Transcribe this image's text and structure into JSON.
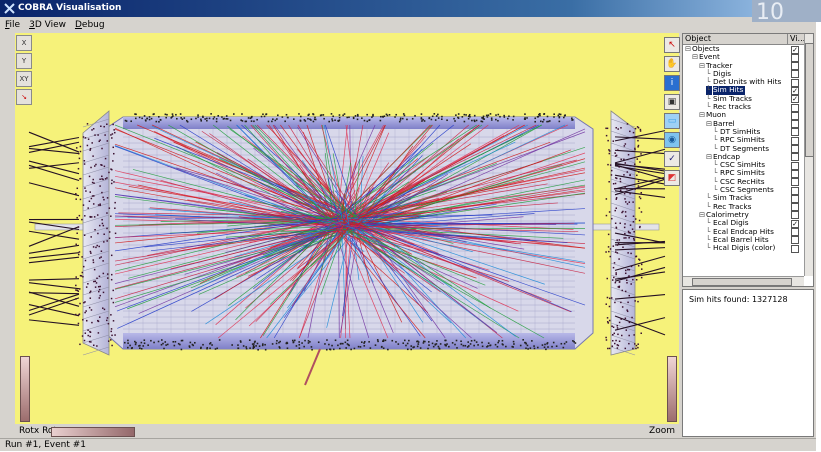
{
  "window": {
    "title": "COBRA Visualisation",
    "badge": "10"
  },
  "menu": [
    {
      "label": "File",
      "ul": "F",
      "rest": "ile"
    },
    {
      "label": "3D View",
      "ul": "3",
      "rest": "D View"
    },
    {
      "label": "Debug",
      "ul": "D",
      "rest": "ebug"
    }
  ],
  "tree_header": {
    "col1": "Object",
    "col2": "Vi..."
  },
  "tree": [
    {
      "label": "Objects",
      "level": 0,
      "checked": true
    },
    {
      "label": "Event",
      "level": 1,
      "checked": false
    },
    {
      "label": "Tracker",
      "level": 2,
      "checked": false
    },
    {
      "label": "Digis",
      "level": 3,
      "checked": false
    },
    {
      "label": "Det Units with Hits",
      "level": 3,
      "checked": false
    },
    {
      "label": "Sim Hits",
      "level": 3,
      "checked": true,
      "selected": true
    },
    {
      "label": "Sim Tracks",
      "level": 3,
      "checked": true
    },
    {
      "label": "Rec tracks",
      "level": 3,
      "checked": false
    },
    {
      "label": "Muon",
      "level": 2,
      "checked": false
    },
    {
      "label": "Barrel",
      "level": 3,
      "checked": false
    },
    {
      "label": "DT SimHits",
      "level": 4,
      "checked": false
    },
    {
      "label": "RPC SimHits",
      "level": 4,
      "checked": false
    },
    {
      "label": "DT Segments",
      "level": 4,
      "checked": false
    },
    {
      "label": "Endcap",
      "level": 3,
      "checked": false
    },
    {
      "label": "CSC SimHits",
      "level": 4,
      "checked": false
    },
    {
      "label": "RPC SimHits",
      "level": 4,
      "checked": false
    },
    {
      "label": "CSC RecHits",
      "level": 4,
      "checked": false
    },
    {
      "label": "CSC Segments",
      "level": 4,
      "checked": false
    },
    {
      "label": "Sim Tracks",
      "level": 3,
      "checked": false
    },
    {
      "label": "Rec Tracks",
      "level": 3,
      "checked": false
    },
    {
      "label": "Calorimetry",
      "level": 2,
      "checked": false
    },
    {
      "label": "Ecal Digis",
      "level": 3,
      "checked": true
    },
    {
      "label": "Ecal Endcap Hits",
      "level": 3,
      "checked": false
    },
    {
      "label": "Ecal Barrel Hits",
      "level": 3,
      "checked": false
    },
    {
      "label": "Hcal Digis (color)",
      "level": 3,
      "checked": false
    }
  ],
  "info": {
    "text": "Sim hits found:  1327128"
  },
  "bottom": {
    "rot_label": "Rotx Roty",
    "zoom_label": "Zoom"
  },
  "status": {
    "text": "Run #1, Event #1"
  },
  "left_tools": [
    "x-axis-icon",
    "y-axis-icon",
    "xy-axis-icon",
    "pointer-icon"
  ],
  "right_tools": [
    "select-arrow-icon",
    "hand-icon",
    "info-icon",
    "camera-icon",
    "view-icon",
    "eye-icon",
    "pick-icon",
    "color-icon"
  ],
  "colors": {
    "viewport_bg": "#f6f27a",
    "selection": "#0a246a"
  }
}
